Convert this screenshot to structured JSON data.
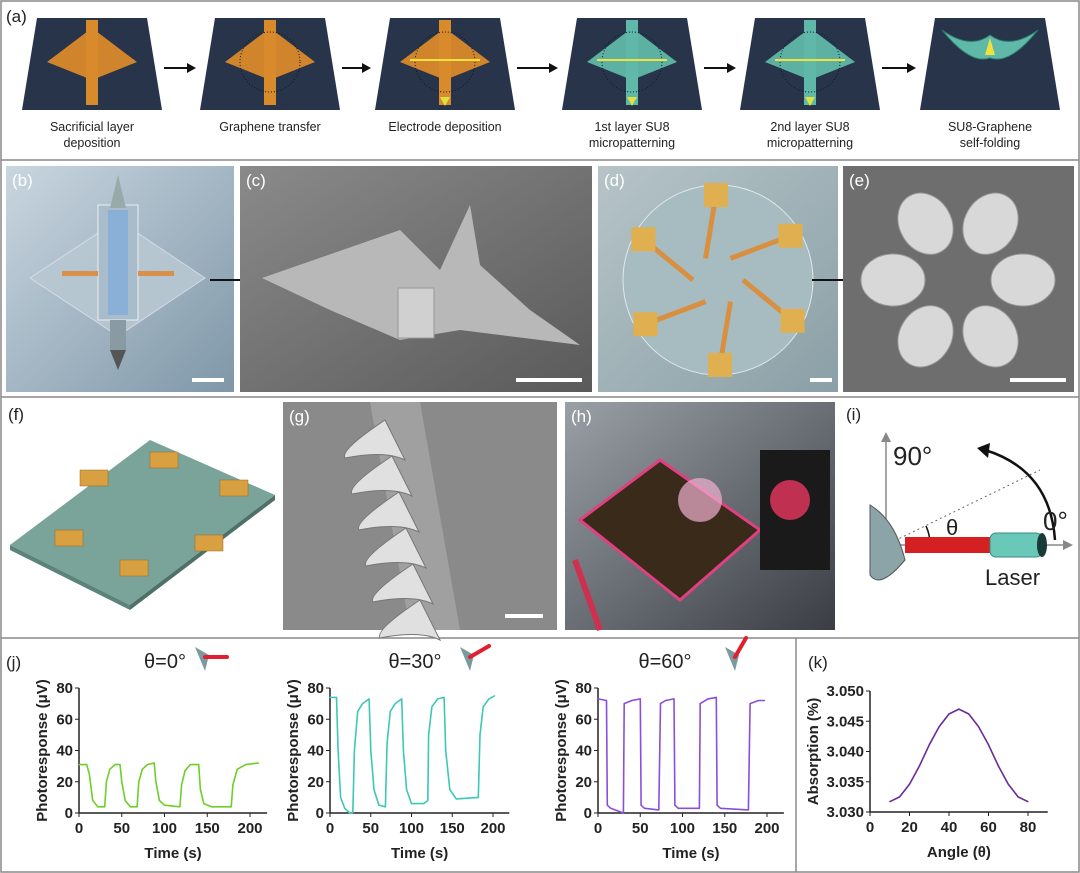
{
  "panels": {
    "a": {
      "label": "(a)",
      "steps": [
        {
          "caption": [
            "Sacrificial layer",
            "deposition"
          ]
        },
        {
          "caption": [
            "Graphene transfer"
          ]
        },
        {
          "caption": [
            "Electrode deposition"
          ]
        },
        {
          "caption": [
            "1st layer SU8",
            "micropatterning"
          ]
        },
        {
          "caption": [
            "2nd layer SU8",
            "micropatterning"
          ]
        },
        {
          "caption": [
            "SU8-Graphene",
            "self-folding"
          ]
        }
      ]
    },
    "b": {
      "label": "(b)"
    },
    "c": {
      "label": "(c)"
    },
    "d": {
      "label": "(d)"
    },
    "e": {
      "label": "(e)"
    },
    "f": {
      "label": "(f)"
    },
    "g": {
      "label": "(g)"
    },
    "h": {
      "label": "(h)"
    },
    "i": {
      "label": "(i)",
      "angle_90": "90°",
      "angle_0": "0°",
      "theta": "θ",
      "laser": "Laser"
    },
    "j": {
      "label": "(j)"
    },
    "k": {
      "label": "(k)"
    }
  },
  "colors": {
    "substrate": "#27344a",
    "sacrificial": "#d98a2a",
    "su8": "#5fb8a8",
    "j0": "#6ccf2a",
    "j30": "#3cc8b4",
    "j60": "#8a4fd8",
    "k": "#6a2a9a"
  },
  "chart_data": [
    {
      "type": "line",
      "title": "θ=0°",
      "xlabel": "Time (s)",
      "ylabel": "Photoresponse (μV)",
      "xlim": [
        0,
        220
      ],
      "ylim": [
        0,
        80
      ],
      "xticks": [
        0,
        50,
        100,
        150,
        200
      ],
      "yticks": [
        0,
        20,
        40,
        60,
        80
      ],
      "x": [
        0,
        9,
        12,
        16,
        22,
        30,
        32,
        36,
        42,
        48,
        50,
        54,
        60,
        68,
        70,
        74,
        80,
        88,
        90,
        94,
        100,
        118,
        120,
        124,
        130,
        140,
        142,
        146,
        155,
        178,
        180,
        185,
        195,
        210
      ],
      "y": [
        31,
        31,
        25,
        8,
        4,
        4,
        20,
        28,
        31,
        31,
        20,
        8,
        4,
        4,
        20,
        28,
        31,
        32,
        20,
        8,
        5,
        4,
        18,
        27,
        31,
        31,
        15,
        6,
        4,
        4,
        18,
        28,
        31,
        32
      ]
    },
    {
      "type": "line",
      "title": "θ=30°",
      "xlabel": "Time (s)",
      "ylabel": "Photoresponse (μV)",
      "xlim": [
        0,
        220
      ],
      "ylim": [
        0,
        80
      ],
      "xticks": [
        0,
        50,
        100,
        150,
        200
      ],
      "yticks": [
        0,
        20,
        40,
        60,
        80
      ],
      "x": [
        0,
        8,
        10,
        13,
        18,
        24,
        28,
        30,
        34,
        40,
        48,
        50,
        54,
        60,
        68,
        70,
        74,
        80,
        88,
        90,
        94,
        100,
        115,
        120,
        121,
        125,
        132,
        140,
        142,
        147,
        155,
        182,
        184,
        188,
        195,
        202
      ],
      "y": [
        74,
        74,
        40,
        10,
        3,
        0,
        0,
        40,
        65,
        70,
        73,
        40,
        15,
        5,
        4,
        45,
        65,
        70,
        73,
        40,
        15,
        6,
        6,
        8,
        50,
        68,
        73,
        74,
        40,
        15,
        9,
        10,
        50,
        68,
        73,
        75
      ]
    },
    {
      "type": "line",
      "title": "θ=60°",
      "xlabel": "Time (s)",
      "ylabel": "Photoresponse (μV)",
      "xlim": [
        0,
        220
      ],
      "ylim": [
        0,
        80
      ],
      "xticks": [
        0,
        50,
        100,
        150,
        200
      ],
      "yticks": [
        0,
        20,
        40,
        60,
        80
      ],
      "x": [
        0,
        10,
        11,
        15,
        25,
        30,
        31,
        40,
        50,
        51,
        55,
        72,
        74,
        80,
        90,
        91,
        95,
        120,
        121,
        130,
        140,
        141,
        145,
        178,
        180,
        190,
        197
      ],
      "y": [
        73,
        72,
        5,
        3,
        1,
        0,
        70,
        72,
        73,
        5,
        3,
        2,
        70,
        72,
        73,
        5,
        3,
        3,
        70,
        73,
        74,
        5,
        3,
        2,
        70,
        72,
        72
      ]
    },
    {
      "type": "line",
      "title": "",
      "xlabel": "Angle (θ)",
      "ylabel": "Absorption (%)",
      "xlim": [
        0,
        90
      ],
      "ylim": [
        3.03,
        3.05
      ],
      "xticks": [
        0,
        20,
        40,
        60,
        80
      ],
      "yticks": [
        "3.030",
        "3.035",
        "3.040",
        "3.045",
        "3.050"
      ],
      "x": [
        10,
        15,
        20,
        25,
        30,
        35,
        40,
        45,
        50,
        55,
        60,
        65,
        70,
        75,
        80
      ],
      "y": [
        3.0317,
        3.0325,
        3.0346,
        3.0376,
        3.0411,
        3.0441,
        3.0462,
        3.047,
        3.0462,
        3.0441,
        3.0411,
        3.0376,
        3.0346,
        3.0325,
        3.0317
      ]
    }
  ]
}
